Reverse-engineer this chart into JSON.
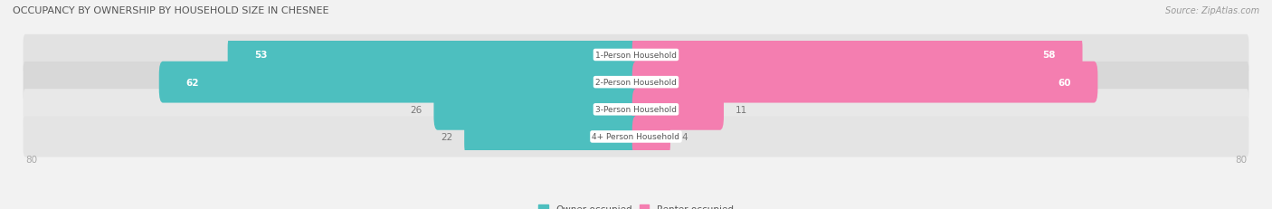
{
  "title": "OCCUPANCY BY OWNERSHIP BY HOUSEHOLD SIZE IN CHESNEE",
  "source": "Source: ZipAtlas.com",
  "categories": [
    "1-Person Household",
    "2-Person Household",
    "3-Person Household",
    "4+ Person Household"
  ],
  "owner_values": [
    53,
    62,
    26,
    22
  ],
  "renter_values": [
    58,
    60,
    11,
    4
  ],
  "owner_color": "#4DBFBF",
  "renter_color": "#F47EB0",
  "owner_label": "Owner-occupied",
  "renter_label": "Renter-occupied",
  "axis_max": 80,
  "bg_color": "#f2f2f2",
  "row_bg_colors": [
    "#e8e8e8",
    "#dedede",
    "#e8e8e8",
    "#e8e8e8"
  ],
  "title_color": "#555555",
  "label_color": "#555555",
  "axis_label_color": "#aaaaaa",
  "value_label_inside_color": "white",
  "value_label_outside_color": "#777777"
}
